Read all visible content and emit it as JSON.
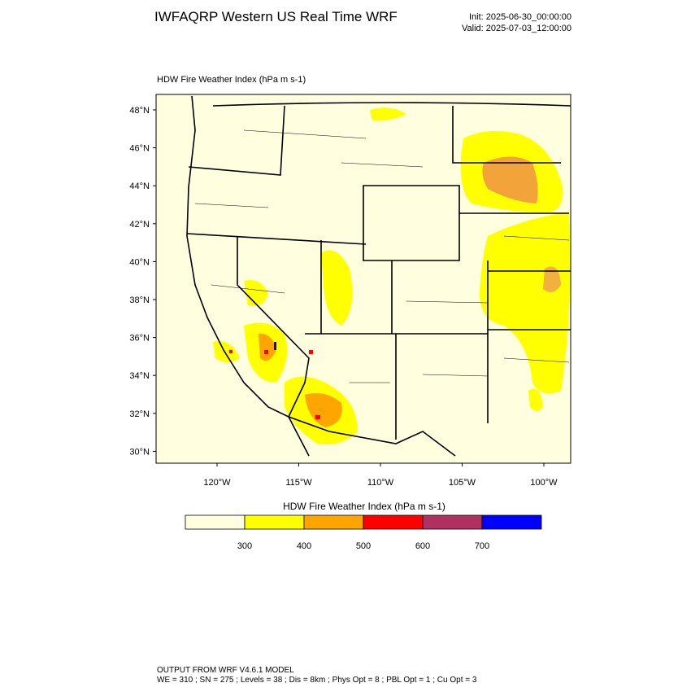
{
  "header": {
    "title": "IWFAQRP Western US Real Time WRF",
    "init": "Init: 2025-06-30_00:00:00",
    "valid": "Valid: 2025-07-03_12:00:00"
  },
  "map": {
    "title": "HDW Fire Weather Index   (hPa m s-1)",
    "lat_labels": [
      "48°N",
      "46°N",
      "44°N",
      "42°N",
      "40°N",
      "38°N",
      "36°N",
      "34°N",
      "32°N",
      "30°N"
    ],
    "lon_labels": [
      "120°W",
      "115°W",
      "110°W",
      "105°W",
      "100°W"
    ]
  },
  "colorbar": {
    "title": "HDW Fire Weather Index (hPa m s-1)",
    "levels": [
      300,
      400,
      500,
      600,
      700
    ],
    "colors": [
      "#ffffe0",
      "#ffff00",
      "#ffa500",
      "#ff0000",
      "#b03060",
      "#0000ff"
    ]
  },
  "footer": {
    "line1": "OUTPUT FROM WRF V4.6.1 MODEL",
    "line2": "WE = 310 ; SN = 275 ; Levels = 38 ; Dis = 8km ; Phys Opt = 8 ; PBL Opt = 1 ; Cu Opt = 3"
  }
}
